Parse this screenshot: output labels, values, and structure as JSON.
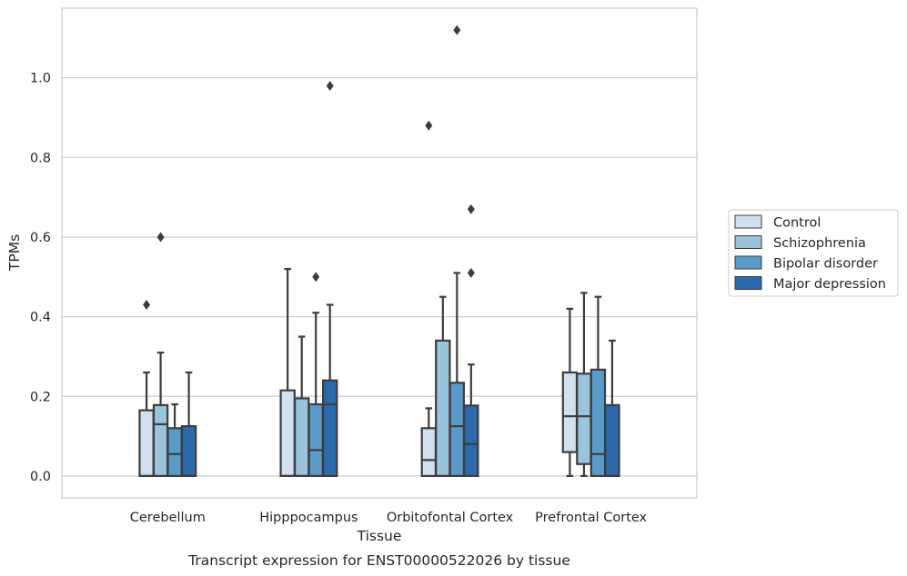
{
  "chart_data": {
    "type": "boxplot",
    "title": "",
    "caption": "Transcript expression for ENST00000522026 by tissue",
    "xlabel": "Tissue",
    "ylabel": "TPMs",
    "ylim": [
      -0.055,
      1.175
    ],
    "yticks": [
      0.0,
      0.2,
      0.4,
      0.6,
      0.8,
      1.0
    ],
    "ytick_labels": [
      "0.0",
      "0.2",
      "0.4",
      "0.6",
      "0.8",
      "1.0"
    ],
    "grid": "horizontal",
    "legend_position": "right",
    "categories": [
      "Cerebellum",
      "Hipppocampus",
      "Orbitofontal Cortex",
      "Prefrontal Cortex"
    ],
    "series": [
      {
        "name": "Control",
        "color": "#d1e1ef",
        "boxes": [
          {
            "whislo": 0.0,
            "q1": 0.0,
            "med": 0.0,
            "q3": 0.165,
            "whishi": 0.26,
            "fliers": [
              0.43
            ]
          },
          {
            "whislo": 0.0,
            "q1": 0.0,
            "med": 0.0,
            "q3": 0.215,
            "whishi": 0.52,
            "fliers": []
          },
          {
            "whislo": 0.0,
            "q1": 0.0,
            "med": 0.04,
            "q3": 0.12,
            "whishi": 0.17,
            "fliers": [
              0.88
            ]
          },
          {
            "whislo": 0.0,
            "q1": 0.06,
            "med": 0.15,
            "q3": 0.26,
            "whishi": 0.42,
            "fliers": []
          }
        ]
      },
      {
        "name": "Schizophrenia",
        "color": "#9ac3dc",
        "boxes": [
          {
            "whislo": 0.0,
            "q1": 0.0,
            "med": 0.13,
            "q3": 0.178,
            "whishi": 0.31,
            "fliers": [
              0.6
            ]
          },
          {
            "whislo": 0.0,
            "q1": 0.0,
            "med": 0.0,
            "q3": 0.195,
            "whishi": 0.35,
            "fliers": []
          },
          {
            "whislo": 0.0,
            "q1": 0.0,
            "med": 0.0,
            "q3": 0.34,
            "whishi": 0.45,
            "fliers": []
          },
          {
            "whislo": 0.0,
            "q1": 0.03,
            "med": 0.15,
            "q3": 0.257,
            "whishi": 0.46,
            "fliers": []
          }
        ]
      },
      {
        "name": "Bipolar disorder",
        "color": "#5a9ac9",
        "boxes": [
          {
            "whislo": 0.0,
            "q1": 0.0,
            "med": 0.055,
            "q3": 0.12,
            "whishi": 0.18,
            "fliers": []
          },
          {
            "whislo": 0.0,
            "q1": 0.0,
            "med": 0.065,
            "q3": 0.18,
            "whishi": 0.41,
            "fliers": [
              0.5
            ]
          },
          {
            "whislo": 0.0,
            "q1": 0.0,
            "med": 0.125,
            "q3": 0.234,
            "whishi": 0.51,
            "fliers": [
              1.12
            ]
          },
          {
            "whislo": 0.0,
            "q1": 0.0,
            "med": 0.055,
            "q3": 0.267,
            "whishi": 0.45,
            "fliers": []
          }
        ]
      },
      {
        "name": "Major depression",
        "color": "#2a6aad",
        "boxes": [
          {
            "whislo": 0.0,
            "q1": 0.0,
            "med": 0.0,
            "q3": 0.125,
            "whishi": 0.26,
            "fliers": []
          },
          {
            "whislo": 0.0,
            "q1": 0.0,
            "med": 0.18,
            "q3": 0.24,
            "whishi": 0.43,
            "fliers": [
              0.98
            ]
          },
          {
            "whislo": 0.0,
            "q1": 0.0,
            "med": 0.08,
            "q3": 0.177,
            "whishi": 0.28,
            "fliers": [
              0.51,
              0.67
            ]
          },
          {
            "whislo": 0.0,
            "q1": 0.0,
            "med": 0.0,
            "q3": 0.178,
            "whishi": 0.34,
            "fliers": []
          }
        ]
      }
    ]
  },
  "colors": {
    "grid": "#cccccc",
    "frame": "#cccccc",
    "box_edge": "#3d3d3d",
    "text": "#262626"
  }
}
